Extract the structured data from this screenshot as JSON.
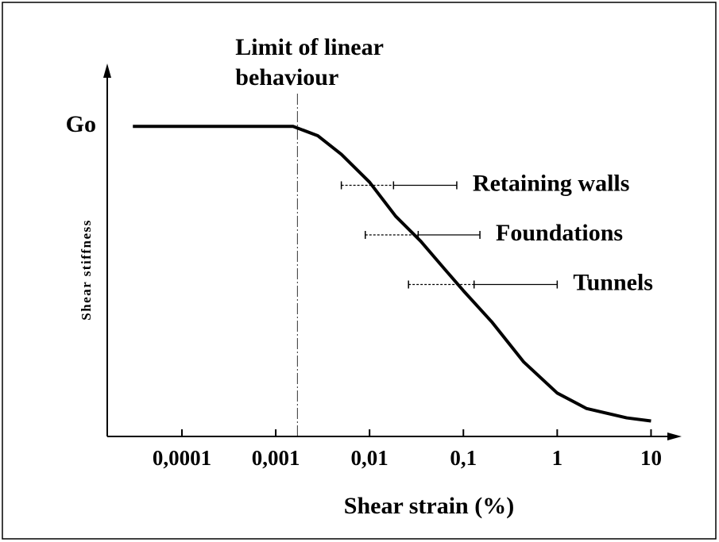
{
  "chart_data": {
    "type": "line",
    "xlabel": "Shear strain (%)",
    "ylabel": "Shear stiffness",
    "xscale": "log",
    "xlim": [
      1.6e-05,
      20
    ],
    "ylim": [
      0,
      1.19
    ],
    "xticks": [
      {
        "value": 0.0001,
        "label": "0,0001"
      },
      {
        "value": 0.001,
        "label": "0,001"
      },
      {
        "value": 0.01,
        "label": "0,01"
      },
      {
        "value": 0.1,
        "label": "0,1"
      },
      1,
      10
    ],
    "yticks": [
      {
        "value": 1,
        "label": "Go"
      }
    ],
    "color": "#000000",
    "curve": {
      "x": [
        3e-05,
        0.00153,
        0.0028,
        0.005,
        0.01,
        0.019,
        0.035,
        0.063,
        0.1,
        0.2,
        0.44,
        1,
        2.06,
        5.5,
        10
      ],
      "y": [
        1,
        1,
        0.97,
        0.91,
        0.82,
        0.71,
        0.63,
        0.54,
        0.47,
        0.37,
        0.24,
        0.14,
        0.09,
        0.06,
        0.05
      ]
    },
    "limit": {
      "label": [
        "Limit of linear",
        "behaviour"
      ],
      "x": 0.0017
    },
    "ranges": [
      {
        "label": "Retaining walls",
        "x": [
          0.005,
          0.018,
          0.085
        ],
        "y": 0.81
      },
      {
        "label": "Foundations",
        "x": [
          0.009,
          0.033,
          0.15
        ],
        "y": 0.65
      },
      {
        "label": "Tunnels",
        "x": [
          0.026,
          0.13,
          1
        ],
        "y": 0.49
      }
    ]
  }
}
